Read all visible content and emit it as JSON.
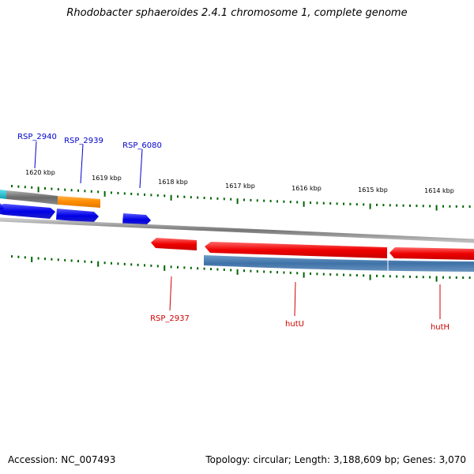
{
  "title": "Rhodobacter sphaeroides 2.4.1 chromosome 1, complete genome",
  "accession": "Accession: NC_007493",
  "summary": "Topology: circular; Length: 3,188,609 bp; Genes: 3,070",
  "ticks": [
    "1620 kbp",
    "1619 kbp",
    "1618 kbp",
    "1617 kbp",
    "1616 kbp",
    "1615 kbp",
    "1614 kbp"
  ],
  "top_labels": [
    "RSP_2940",
    "RSP_2939",
    "RSP_6080"
  ],
  "bottom_labels": [
    "RSP_2937",
    "hutU",
    "hutH"
  ],
  "colors": {
    "forward_gene": "#0000ee",
    "reverse_gene": "#ee0000",
    "orange_feature": "#ff8c00",
    "grey_feature": "#666666",
    "steelblue_feature": "#4f7fb0",
    "cyan_feature": "#1ab8c8",
    "tick_green": "#006400",
    "top_label_color": "#0000cc",
    "bottom_label_color": "#cc0000"
  }
}
